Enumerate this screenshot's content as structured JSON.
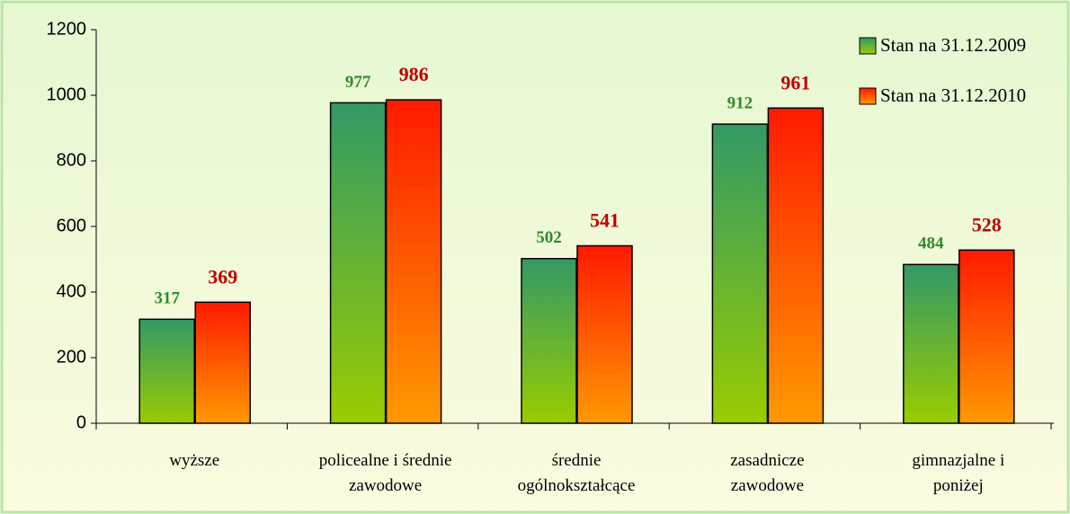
{
  "chart_data": {
    "type": "bar",
    "categories": [
      "wyższe",
      "policealne i średnie\nzawodowe",
      "średnie\nogólnokształcące",
      "zasadnicze\nzawodowe",
      "gimnazjalne i\nponiżej"
    ],
    "series": [
      {
        "name": "Stan na 31.12.2009",
        "color": "#2e8b2e",
        "values": [
          317,
          977,
          502,
          912,
          484
        ]
      },
      {
        "name": "Stan na 31.12.2010",
        "color": "#c00000",
        "values": [
          369,
          986,
          541,
          961,
          528
        ]
      }
    ],
    "ylim": [
      0,
      1200
    ],
    "yticks": [
      0,
      200,
      400,
      600,
      800,
      1000,
      1200
    ],
    "legend": "top-right"
  }
}
